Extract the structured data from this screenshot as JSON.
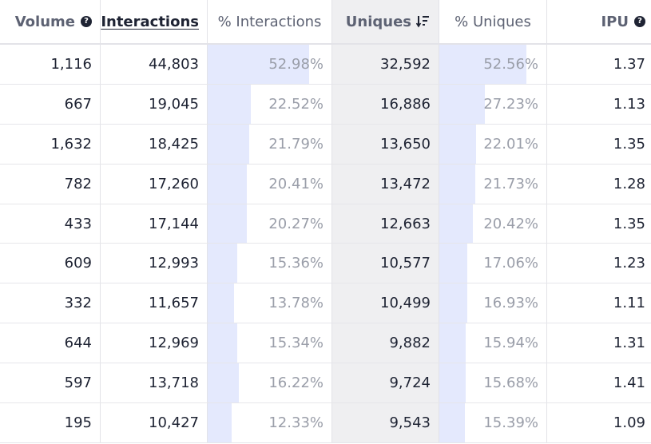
{
  "columns": {
    "volume": "Volume",
    "interactions": "Interactions",
    "pct_interactions": "% Interactions",
    "uniques": "Uniques",
    "pct_uniques": "% Uniques",
    "ipu": "IPU"
  },
  "help_glyph": "?",
  "colors": {
    "bar": "#e4e9fd",
    "sorted_column_bg": "#efeff1",
    "text": "#1e2333",
    "muted_text": "#9a9ea9"
  },
  "rows": [
    {
      "volume": "1,116",
      "interactions": "44,803",
      "pct_interactions": "52.98%",
      "pct_interactions_value": 52.98,
      "uniques": "32,592",
      "pct_uniques": "52.56%",
      "pct_uniques_value": 52.56,
      "ipu": "1.37"
    },
    {
      "volume": "667",
      "interactions": "19,045",
      "pct_interactions": "22.52%",
      "pct_interactions_value": 22.52,
      "uniques": "16,886",
      "pct_uniques": "27.23%",
      "pct_uniques_value": 27.23,
      "ipu": "1.13"
    },
    {
      "volume": "1,632",
      "interactions": "18,425",
      "pct_interactions": "21.79%",
      "pct_interactions_value": 21.79,
      "uniques": "13,650",
      "pct_uniques": "22.01%",
      "pct_uniques_value": 22.01,
      "ipu": "1.35"
    },
    {
      "volume": "782",
      "interactions": "17,260",
      "pct_interactions": "20.41%",
      "pct_interactions_value": 20.41,
      "uniques": "13,472",
      "pct_uniques": "21.73%",
      "pct_uniques_value": 21.73,
      "ipu": "1.28"
    },
    {
      "volume": "433",
      "interactions": "17,144",
      "pct_interactions": "20.27%",
      "pct_interactions_value": 20.27,
      "uniques": "12,663",
      "pct_uniques": "20.42%",
      "pct_uniques_value": 20.42,
      "ipu": "1.35"
    },
    {
      "volume": "609",
      "interactions": "12,993",
      "pct_interactions": "15.36%",
      "pct_interactions_value": 15.36,
      "uniques": "10,577",
      "pct_uniques": "17.06%",
      "pct_uniques_value": 17.06,
      "ipu": "1.23"
    },
    {
      "volume": "332",
      "interactions": "11,657",
      "pct_interactions": "13.78%",
      "pct_interactions_value": 13.78,
      "uniques": "10,499",
      "pct_uniques": "16.93%",
      "pct_uniques_value": 16.93,
      "ipu": "1.11"
    },
    {
      "volume": "644",
      "interactions": "12,969",
      "pct_interactions": "15.34%",
      "pct_interactions_value": 15.34,
      "uniques": "9,882",
      "pct_uniques": "15.94%",
      "pct_uniques_value": 15.94,
      "ipu": "1.31"
    },
    {
      "volume": "597",
      "interactions": "13,718",
      "pct_interactions": "16.22%",
      "pct_interactions_value": 16.22,
      "uniques": "9,724",
      "pct_uniques": "15.68%",
      "pct_uniques_value": 15.68,
      "ipu": "1.41"
    },
    {
      "volume": "195",
      "interactions": "10,427",
      "pct_interactions": "12.33%",
      "pct_interactions_value": 12.33,
      "uniques": "9,543",
      "pct_uniques": "15.39%",
      "pct_uniques_value": 15.39,
      "ipu": "1.09"
    }
  ]
}
